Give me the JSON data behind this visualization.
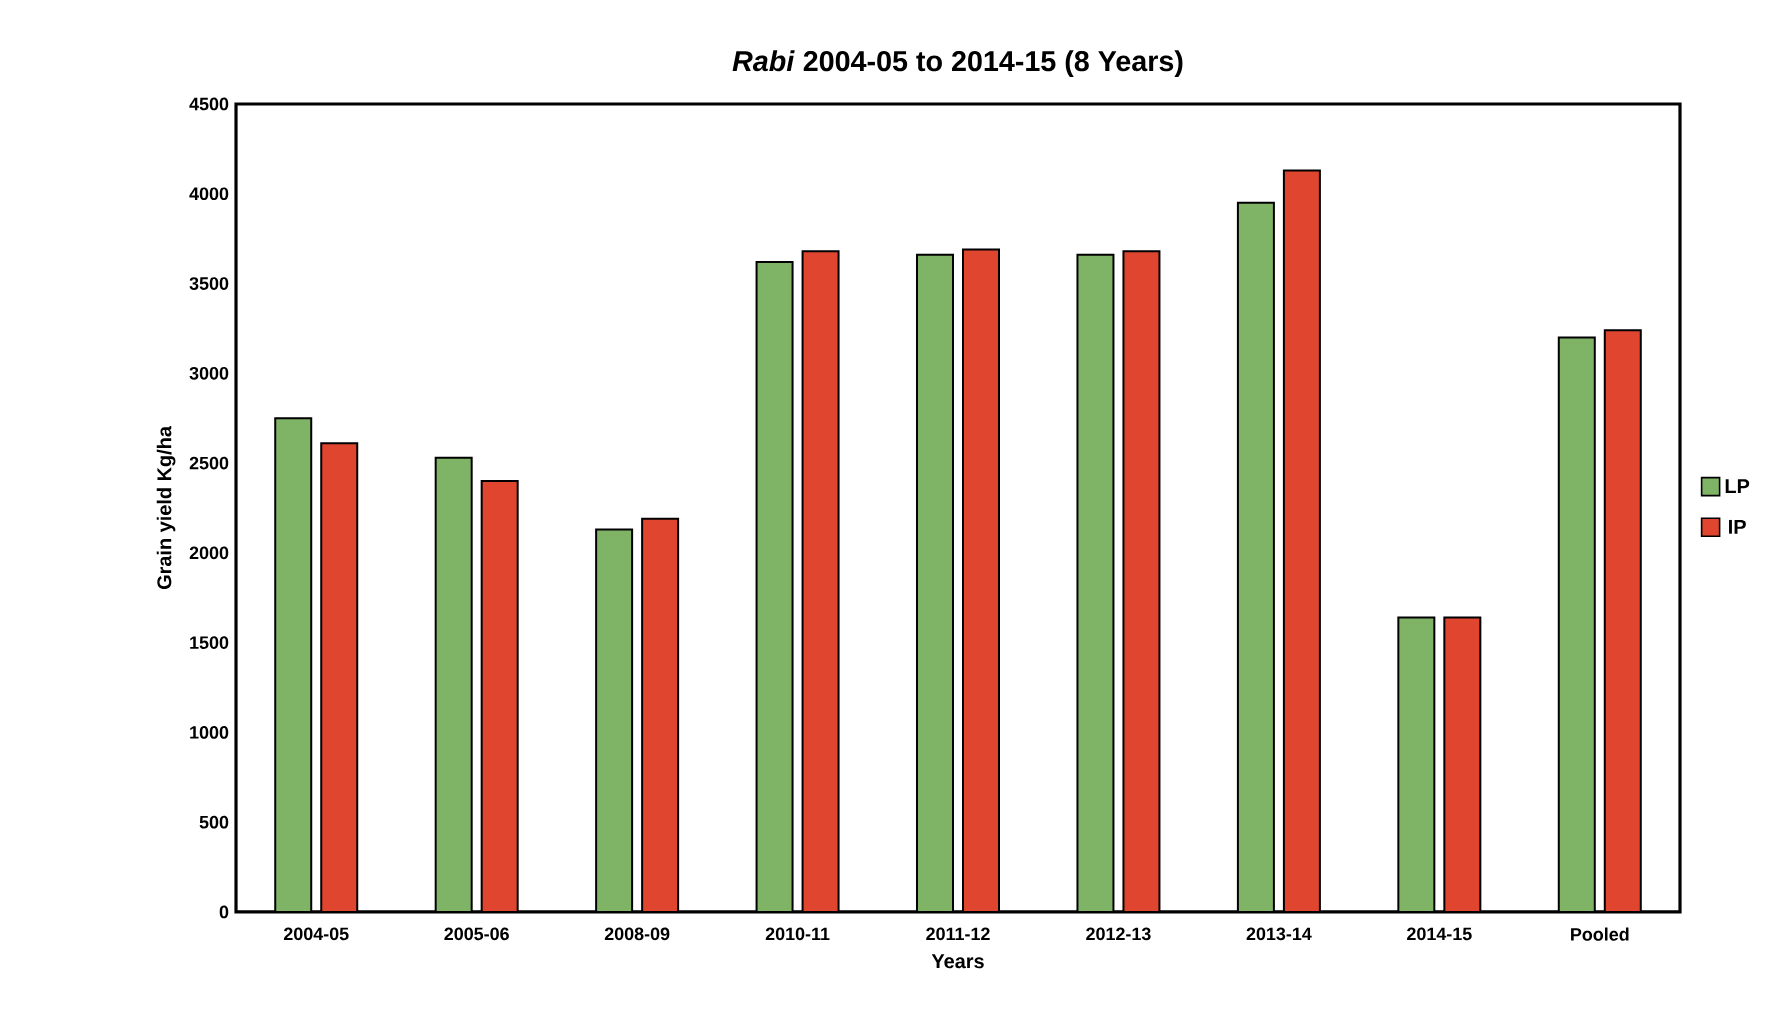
{
  "chart_data": {
    "type": "bar",
    "title": "*Rabi* 2004-05 to 2014-15 (8 Years)",
    "xlabel": "Years",
    "ylabel": "Grain yield Kg/ha",
    "categories": [
      "2004-05",
      "2005-06",
      "2008-09",
      "2010-11",
      "2011-12",
      "2012-13",
      "2013-14",
      "2014-15",
      "Pooled"
    ],
    "series": [
      {
        "name": "LP",
        "color": "#7fb466",
        "values": [
          2750,
          2530,
          2130,
          3620,
          3660,
          3660,
          3950,
          1640,
          3200
        ]
      },
      {
        "name": "IP",
        "color": "#e0462f",
        "values": [
          2610,
          2400,
          2190,
          3680,
          3690,
          3680,
          4130,
          1640,
          3240
        ]
      }
    ],
    "ylim": [
      0,
      4500
    ],
    "yticks": [
      0,
      500,
      1000,
      1500,
      2000,
      2500,
      3000,
      3500,
      4000,
      4500
    ],
    "grid": false,
    "legend": "right"
  }
}
